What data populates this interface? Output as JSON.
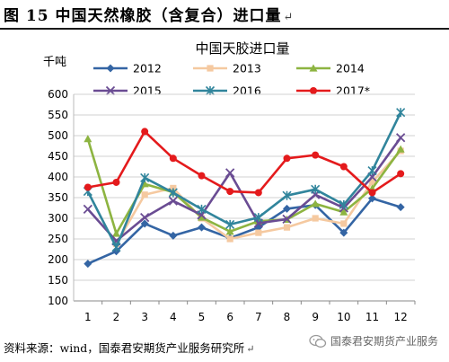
{
  "figure": {
    "title": "图 15 中国天然橡胶（含复合）进口量",
    "para_mark": "↵",
    "source": "资料来源：wind，国泰君安期货产业服务研究所",
    "watermark": "国泰君安期货产业服务"
  },
  "chart_data": {
    "type": "line",
    "title": "中国天胶进口量",
    "ylabel": "千吨",
    "xlabel": "",
    "categories": [
      "1",
      "2",
      "3",
      "4",
      "5",
      "6",
      "7",
      "8",
      "9",
      "10",
      "11",
      "12"
    ],
    "ylim": [
      100,
      600
    ],
    "yticks": [
      100,
      150,
      200,
      250,
      300,
      350,
      400,
      450,
      500,
      550,
      600
    ],
    "grid": true,
    "legend_position": "top",
    "series": [
      {
        "name": "2012",
        "color": "#3465A4",
        "marker": "diamond",
        "values": [
          190,
          220,
          287,
          258,
          278,
          252,
          278,
          323,
          332,
          265,
          348,
          327
        ]
      },
      {
        "name": "2013",
        "color": "#F5C9A0",
        "marker": "square",
        "values": [
          null,
          238,
          357,
          373,
          300,
          250,
          265,
          278,
          300,
          287,
          388,
          463
        ]
      },
      {
        "name": "2014",
        "color": "#8DB441",
        "marker": "triangle",
        "values": [
          492,
          263,
          383,
          363,
          302,
          268,
          293,
          297,
          335,
          315,
          372,
          467
        ]
      },
      {
        "name": "2015",
        "color": "#6A4C93",
        "marker": "x",
        "values": [
          322,
          245,
          302,
          342,
          308,
          410,
          288,
          298,
          357,
          325,
          400,
          495
        ]
      },
      {
        "name": "2016",
        "color": "#31859C",
        "marker": "asterisk",
        "values": [
          365,
          230,
          398,
          362,
          322,
          285,
          302,
          355,
          370,
          333,
          415,
          556
        ]
      },
      {
        "name": "2017*",
        "color": "#E41A1C",
        "marker": "circle",
        "values": [
          375,
          387,
          510,
          445,
          403,
          365,
          362,
          445,
          453,
          425,
          362,
          408
        ]
      }
    ]
  }
}
